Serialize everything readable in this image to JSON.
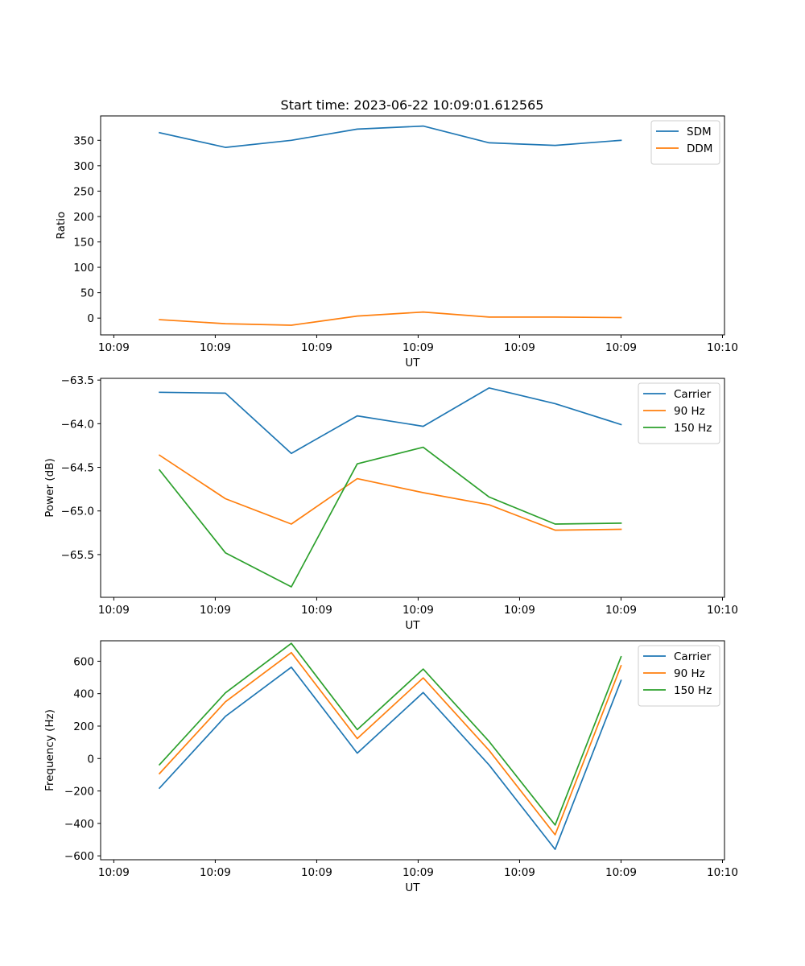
{
  "figure_title": "Start time: 2023-06-22 10:09:01.612565",
  "chart_data": [
    {
      "type": "line",
      "title": "Start time: 2023-06-22 10:09:01.612565",
      "xlabel": "UT",
      "ylabel": "Ratio",
      "x": [
        0.45,
        1.1,
        1.75,
        2.4,
        3.05,
        3.7,
        4.35,
        5.0
      ],
      "x_tick_values": [
        0,
        1,
        2,
        3,
        4,
        5,
        6
      ],
      "x_tick_labels": [
        "10:09",
        "10:09",
        "10:09",
        "10:09",
        "10:09",
        "10:09",
        "10:10"
      ],
      "xlim": [
        -0.13,
        6.02
      ],
      "ylim": [
        -33,
        398
      ],
      "y_ticks": [
        0,
        50,
        100,
        150,
        200,
        250,
        300,
        350
      ],
      "y_tick_labels": [
        "0",
        "50",
        "100",
        "150",
        "200",
        "250",
        "300",
        "350"
      ],
      "legend_position": "top-right",
      "grid": false,
      "series": [
        {
          "name": "SDM",
          "color": "#1f77b4",
          "values": [
            365,
            336,
            350,
            372,
            378,
            345,
            340,
            350
          ]
        },
        {
          "name": "DDM",
          "color": "#ff7f0e",
          "values": [
            -3,
            -11,
            -14,
            4,
            12,
            2,
            2,
            1
          ]
        }
      ]
    },
    {
      "type": "line",
      "title": "",
      "xlabel": "UT",
      "ylabel": "Power (dB)",
      "x": [
        0.45,
        1.1,
        1.75,
        2.4,
        3.05,
        3.7,
        4.35,
        5.0
      ],
      "x_tick_values": [
        0,
        1,
        2,
        3,
        4,
        5,
        6
      ],
      "x_tick_labels": [
        "10:09",
        "10:09",
        "10:09",
        "10:09",
        "10:09",
        "10:09",
        "10:10"
      ],
      "xlim": [
        -0.13,
        6.02
      ],
      "ylim": [
        -65.99,
        -63.48
      ],
      "y_ticks": [
        -63.5,
        -64.0,
        -64.5,
        -65.0,
        -65.5
      ],
      "y_tick_labels": [
        "−63.5",
        "−64.0",
        "−64.5",
        "−65.0",
        "−65.5"
      ],
      "legend_position": "top-right",
      "grid": false,
      "series": [
        {
          "name": "Carrier",
          "color": "#1f77b4",
          "values": [
            -63.64,
            -63.65,
            -64.34,
            -63.91,
            -64.03,
            -63.59,
            -63.77,
            -64.01
          ]
        },
        {
          "name": "90 Hz",
          "color": "#ff7f0e",
          "values": [
            -64.36,
            -64.86,
            -65.15,
            -64.63,
            -64.79,
            -64.93,
            -65.22,
            -65.21
          ]
        },
        {
          "name": "150 Hz",
          "color": "#2ca02c",
          "values": [
            -64.53,
            -65.48,
            -65.87,
            -64.46,
            -64.27,
            -64.84,
            -65.15,
            -65.14
          ]
        }
      ]
    },
    {
      "type": "line",
      "title": "",
      "xlabel": "UT",
      "ylabel": "Frequency (Hz)",
      "x": [
        0.45,
        1.1,
        1.75,
        2.4,
        3.05,
        3.7,
        4.35,
        5.0
      ],
      "x_tick_values": [
        0,
        1,
        2,
        3,
        4,
        5,
        6
      ],
      "x_tick_labels": [
        "10:09",
        "10:09",
        "10:09",
        "10:09",
        "10:09",
        "10:09",
        "10:10"
      ],
      "xlim": [
        -0.13,
        6.02
      ],
      "ylim": [
        -624,
        726
      ],
      "y_ticks": [
        -600,
        -400,
        -200,
        0,
        200,
        400,
        600
      ],
      "y_tick_labels": [
        "−600",
        "−400",
        "−200",
        "0",
        "200",
        "400",
        "600"
      ],
      "legend_position": "top-right",
      "grid": false,
      "series": [
        {
          "name": "Carrier",
          "color": "#1f77b4",
          "values": [
            -183,
            260,
            563,
            33,
            407,
            -40,
            -560,
            482
          ]
        },
        {
          "name": "90 Hz",
          "color": "#ff7f0e",
          "values": [
            -93,
            350,
            653,
            123,
            497,
            50,
            -470,
            572
          ]
        },
        {
          "name": "150 Hz",
          "color": "#2ca02c",
          "values": [
            -38,
            405,
            710,
            178,
            552,
            105,
            -410,
            627
          ]
        }
      ]
    }
  ]
}
